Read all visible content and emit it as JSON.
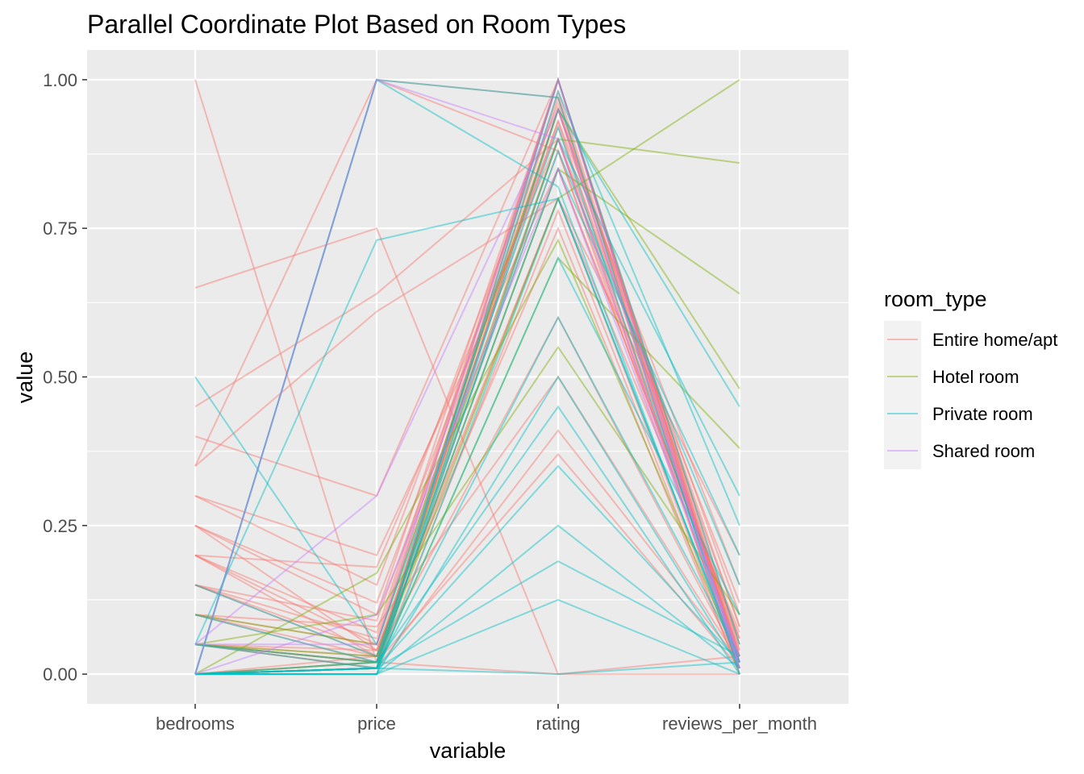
{
  "chart_data": {
    "type": "parallel-coordinates",
    "title": "Parallel Coordinate Plot Based on Room Types",
    "xlabel": "variable",
    "ylabel": "value",
    "categories": [
      "bedrooms",
      "price",
      "rating",
      "reviews_per_month"
    ],
    "ylim": [
      -0.05,
      1.05
    ],
    "y_ticks": [
      0,
      0.25,
      0.5,
      0.75,
      1
    ],
    "y_tick_labels": [
      "0.00",
      "0.25",
      "0.50",
      "0.75",
      "1.00"
    ],
    "grid": true,
    "legend": {
      "title": "room_type",
      "placement": "right",
      "entries": [
        "Entire home/apt",
        "Hotel room",
        "Private room",
        "Shared room"
      ]
    },
    "colors": {
      "Entire home/apt": "#F8766D",
      "Hotel room": "#7CAE00",
      "Private room": "#00BFC4",
      "Shared room": "#C77CFF",
      "panel_background": "#EBEBEB",
      "grid": "#FFFFFF"
    },
    "series": [
      {
        "group": "Entire home/apt",
        "values": [
          1.0,
          0.02,
          0.95,
          0.02
        ]
      },
      {
        "group": "Entire home/apt",
        "values": [
          0.65,
          0.75,
          0.0,
          0.03
        ]
      },
      {
        "group": "Entire home/apt",
        "values": [
          0.45,
          0.64,
          0.9,
          0.05
        ]
      },
      {
        "group": "Entire home/apt",
        "values": [
          0.4,
          0.3,
          1.0,
          0.02
        ]
      },
      {
        "group": "Entire home/apt",
        "values": [
          0.35,
          1.0,
          0.88,
          0.04
        ]
      },
      {
        "group": "Entire home/apt",
        "values": [
          0.35,
          0.61,
          0.8,
          0.01
        ]
      },
      {
        "group": "Entire home/apt",
        "values": [
          0.3,
          0.15,
          0.96,
          0.03
        ]
      },
      {
        "group": "Entire home/apt",
        "values": [
          0.3,
          0.2,
          0.85,
          0.06
        ]
      },
      {
        "group": "Entire home/apt",
        "values": [
          0.25,
          0.1,
          1.0,
          0.02
        ]
      },
      {
        "group": "Entire home/apt",
        "values": [
          0.25,
          0.12,
          0.92,
          0.08
        ]
      },
      {
        "group": "Entire home/apt",
        "values": [
          0.25,
          0.04,
          0.75,
          0.0
        ]
      },
      {
        "group": "Entire home/apt",
        "values": [
          0.2,
          0.07,
          1.0,
          0.03
        ]
      },
      {
        "group": "Entire home/apt",
        "values": [
          0.2,
          0.05,
          0.95,
          0.01
        ]
      },
      {
        "group": "Entire home/apt",
        "values": [
          0.2,
          0.18,
          0.9,
          0.12
        ]
      },
      {
        "group": "Entire home/apt",
        "values": [
          0.2,
          0.03,
          0.6,
          0.02
        ]
      },
      {
        "group": "Entire home/apt",
        "values": [
          0.15,
          0.06,
          1.0,
          0.05
        ]
      },
      {
        "group": "Entire home/apt",
        "values": [
          0.15,
          0.03,
          0.97,
          0.02
        ]
      },
      {
        "group": "Entire home/apt",
        "values": [
          0.15,
          0.09,
          0.93,
          0.0
        ]
      },
      {
        "group": "Entire home/apt",
        "values": [
          0.15,
          0.04,
          0.8,
          0.07
        ]
      },
      {
        "group": "Entire home/apt",
        "values": [
          0.1,
          0.05,
          1.0,
          0.03
        ]
      },
      {
        "group": "Entire home/apt",
        "values": [
          0.1,
          0.02,
          0.95,
          0.1
        ]
      },
      {
        "group": "Entire home/apt",
        "values": [
          0.1,
          0.03,
          0.88,
          0.01
        ]
      },
      {
        "group": "Entire home/apt",
        "values": [
          0.1,
          0.08,
          0.5,
          0.02
        ]
      },
      {
        "group": "Entire home/apt",
        "values": [
          0.05,
          0.02,
          1.0,
          0.04
        ]
      },
      {
        "group": "Entire home/apt",
        "values": [
          0.05,
          0.01,
          0.98,
          0.02
        ]
      },
      {
        "group": "Entire home/apt",
        "values": [
          0.05,
          0.03,
          0.93,
          0.15
        ]
      },
      {
        "group": "Entire home/apt",
        "values": [
          0.05,
          0.04,
          0.9,
          0.01
        ]
      },
      {
        "group": "Entire home/apt",
        "values": [
          0.05,
          0.02,
          0.85,
          0.06
        ]
      },
      {
        "group": "Entire home/apt",
        "values": [
          0.05,
          0.01,
          0.78,
          0.0
        ]
      },
      {
        "group": "Entire home/apt",
        "values": [
          0.05,
          0.02,
          0.37,
          0.01
        ]
      },
      {
        "group": "Entire home/apt",
        "values": [
          0.0,
          0.01,
          1.0,
          0.02
        ]
      },
      {
        "group": "Entire home/apt",
        "values": [
          0.0,
          0.02,
          0.95,
          0.08
        ]
      },
      {
        "group": "Entire home/apt",
        "values": [
          0.0,
          0.01,
          0.9,
          0.03
        ]
      },
      {
        "group": "Entire home/apt",
        "values": [
          0.0,
          0.03,
          0.8,
          0.2
        ]
      },
      {
        "group": "Entire home/apt",
        "values": [
          0.0,
          0.01,
          0.41,
          0.02
        ]
      },
      {
        "group": "Entire home/apt",
        "values": [
          0.0,
          0.02,
          0.0,
          0.0
        ]
      },
      {
        "group": "Entire home/apt",
        "values": [
          0.0,
          1.0,
          0.97,
          0.01
        ]
      },
      {
        "group": "Hotel room",
        "values": [
          0.0,
          0.17,
          0.73,
          0.02
        ]
      },
      {
        "group": "Hotel room",
        "values": [
          0.05,
          0.03,
          0.9,
          0.86
        ]
      },
      {
        "group": "Hotel room",
        "values": [
          0.05,
          0.02,
          0.8,
          1.0
        ]
      },
      {
        "group": "Hotel room",
        "values": [
          0.0,
          0.02,
          0.85,
          0.64
        ]
      },
      {
        "group": "Hotel room",
        "values": [
          0.1,
          0.05,
          0.95,
          0.48
        ]
      },
      {
        "group": "Hotel room",
        "values": [
          0.0,
          0.01,
          0.7,
          0.38
        ]
      },
      {
        "group": "Hotel room",
        "values": [
          0.05,
          0.1,
          0.55,
          0.1
        ]
      },
      {
        "group": "Private room",
        "values": [
          0.5,
          0.05,
          0.92,
          0.02
        ]
      },
      {
        "group": "Private room",
        "values": [
          0.0,
          1.0,
          0.97,
          0.0
        ]
      },
      {
        "group": "Private room",
        "values": [
          0.0,
          1.0,
          0.82,
          0.01
        ]
      },
      {
        "group": "Private room",
        "values": [
          0.05,
          0.73,
          0.8,
          0.02
        ]
      },
      {
        "group": "Private room",
        "values": [
          0.0,
          0.01,
          1.0,
          0.05
        ]
      },
      {
        "group": "Private room",
        "values": [
          0.0,
          0.0,
          0.95,
          0.45
        ]
      },
      {
        "group": "Private room",
        "values": [
          0.0,
          0.01,
          0.9,
          0.3
        ]
      },
      {
        "group": "Private room",
        "values": [
          0.0,
          0.02,
          0.85,
          0.2
        ]
      },
      {
        "group": "Private room",
        "values": [
          0.0,
          0.0,
          0.8,
          0.02
        ]
      },
      {
        "group": "Private room",
        "values": [
          0.05,
          0.01,
          0.7,
          0.1
        ]
      },
      {
        "group": "Private room",
        "values": [
          0.0,
          0.01,
          0.6,
          0.03
        ]
      },
      {
        "group": "Private room",
        "values": [
          0.0,
          0.0,
          0.5,
          0.01
        ]
      },
      {
        "group": "Private room",
        "values": [
          0.05,
          0.02,
          0.45,
          0.0
        ]
      },
      {
        "group": "Private room",
        "values": [
          0.0,
          0.01,
          0.35,
          0.02
        ]
      },
      {
        "group": "Private room",
        "values": [
          0.0,
          0.0,
          0.25,
          0.01
        ]
      },
      {
        "group": "Private room",
        "values": [
          0.0,
          0.01,
          0.19,
          0.03
        ]
      },
      {
        "group": "Private room",
        "values": [
          0.0,
          0.0,
          0.125,
          0.0
        ]
      },
      {
        "group": "Private room",
        "values": [
          0.0,
          0.01,
          0.0,
          0.02
        ]
      },
      {
        "group": "Private room",
        "values": [
          0.1,
          0.02,
          0.98,
          0.25
        ]
      },
      {
        "group": "Private room",
        "values": [
          0.15,
          0.03,
          0.88,
          0.15
        ]
      },
      {
        "group": "Shared room",
        "values": [
          0.0,
          1.0,
          0.9,
          0.01
        ]
      },
      {
        "group": "Shared room",
        "values": [
          0.05,
          0.3,
          0.95,
          0.02
        ]
      },
      {
        "group": "Shared room",
        "values": [
          0.0,
          0.1,
          0.85,
          0.03
        ]
      },
      {
        "group": "Shared room",
        "values": [
          0.05,
          0.05,
          1.0,
          0.01
        ]
      }
    ]
  }
}
